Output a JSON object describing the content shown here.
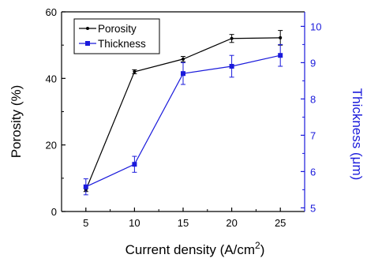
{
  "chart_data": {
    "type": "line",
    "x": [
      5,
      10,
      15,
      20,
      25
    ],
    "xlabel": "Current density (A/cm",
    "xlabel_sup": "2",
    "xlabel_close": ")",
    "xlim": [
      2.5,
      27.5
    ],
    "xticks": [
      "5",
      "10",
      "15",
      "20",
      "25"
    ],
    "y_left": {
      "label": "Porosity (%)",
      "lim": [
        0,
        60
      ],
      "ticks": [
        "0",
        "20",
        "40",
        "60"
      ],
      "color": "#000000"
    },
    "y_right": {
      "label": "Thickness (μm)",
      "lim": [
        4.9,
        10.4
      ],
      "ticks": [
        "5",
        "6",
        "7",
        "8",
        "9",
        "10"
      ],
      "color": "#1a1adb"
    },
    "series": [
      {
        "name": "Porosity",
        "axis": "left",
        "color": "#000000",
        "marker": "dot",
        "values": [
          6.5,
          42.0,
          45.8,
          52.0,
          52.2
        ],
        "errors": [
          0.5,
          0.6,
          0.8,
          1.2,
          2.2
        ]
      },
      {
        "name": "Thickness",
        "axis": "right",
        "color": "#1a1adb",
        "marker": "square",
        "values": [
          5.58,
          6.2,
          8.7,
          8.9,
          9.2
        ],
        "errors": [
          0.22,
          0.22,
          0.3,
          0.3,
          0.3
        ]
      }
    ],
    "legend_position": "top-left",
    "grid": false
  }
}
